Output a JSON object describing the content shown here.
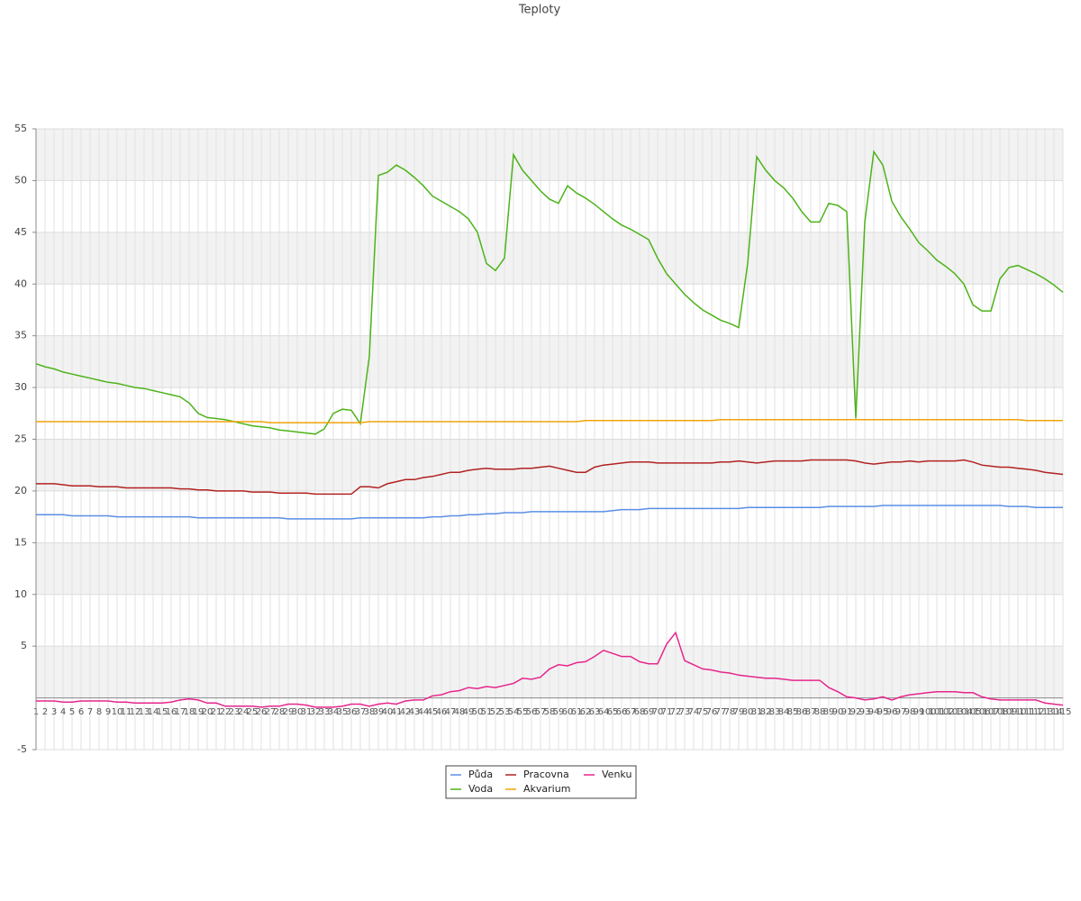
{
  "chart_data": {
    "type": "line",
    "title": "Teploty",
    "categories": [
      1,
      2,
      3,
      4,
      5,
      6,
      7,
      8,
      9,
      10,
      11,
      12,
      13,
      14,
      15,
      16,
      17,
      18,
      19,
      20,
      21,
      22,
      23,
      24,
      25,
      26,
      27,
      28,
      29,
      30,
      31,
      32,
      33,
      34,
      35,
      36,
      37,
      38,
      39,
      40,
      41,
      42,
      43,
      44,
      45,
      46,
      47,
      48,
      49,
      50,
      51,
      52,
      53,
      54,
      55,
      56,
      57,
      58,
      59,
      60,
      61,
      62,
      63,
      64,
      65,
      66,
      67,
      68,
      69,
      70,
      71,
      72,
      73,
      74,
      75,
      76,
      77,
      78,
      79,
      80,
      81,
      82,
      83,
      84,
      85,
      86,
      87,
      88,
      89,
      90,
      91,
      92,
      93,
      94,
      95,
      96,
      97,
      98,
      99,
      100,
      101,
      102,
      103,
      104,
      105,
      106,
      107,
      108,
      109,
      110,
      111,
      112,
      113,
      114,
      115
    ],
    "series": [
      {
        "name": "Půda",
        "color": "#5b8ee6",
        "values": [
          17.7,
          17.7,
          17.7,
          17.7,
          17.6,
          17.6,
          17.6,
          17.6,
          17.6,
          17.5,
          17.5,
          17.5,
          17.5,
          17.5,
          17.5,
          17.5,
          17.5,
          17.5,
          17.4,
          17.4,
          17.4,
          17.4,
          17.4,
          17.4,
          17.4,
          17.4,
          17.4,
          17.4,
          17.3,
          17.3,
          17.3,
          17.3,
          17.3,
          17.3,
          17.3,
          17.3,
          17.4,
          17.4,
          17.4,
          17.4,
          17.4,
          17.4,
          17.4,
          17.4,
          17.5,
          17.5,
          17.6,
          17.6,
          17.7,
          17.7,
          17.8,
          17.8,
          17.9,
          17.9,
          17.9,
          18.0,
          18.0,
          18.0,
          18.0,
          18.0,
          18.0,
          18.0,
          18.0,
          18.0,
          18.1,
          18.2,
          18.2,
          18.2,
          18.3,
          18.3,
          18.3,
          18.3,
          18.3,
          18.3,
          18.3,
          18.3,
          18.3,
          18.3,
          18.3,
          18.4,
          18.4,
          18.4,
          18.4,
          18.4,
          18.4,
          18.4,
          18.4,
          18.4,
          18.5,
          18.5,
          18.5,
          18.5,
          18.5,
          18.5,
          18.6,
          18.6,
          18.6,
          18.6,
          18.6,
          18.6,
          18.6,
          18.6,
          18.6,
          18.6,
          18.6,
          18.6,
          18.6,
          18.6,
          18.5,
          18.5,
          18.5,
          18.4,
          18.4,
          18.4,
          18.4
        ]
      },
      {
        "name": "Voda",
        "color": "#4db319",
        "values": [
          32.3,
          32.0,
          31.8,
          31.5,
          31.3,
          31.1,
          30.9,
          30.7,
          30.5,
          30.4,
          30.2,
          30.0,
          29.9,
          29.7,
          29.5,
          29.3,
          29.1,
          28.5,
          27.5,
          27.1,
          27.0,
          26.9,
          26.7,
          26.5,
          26.3,
          26.2,
          26.1,
          25.9,
          25.8,
          25.7,
          25.6,
          25.5,
          26.0,
          27.5,
          27.9,
          27.8,
          26.5,
          33,
          50.5,
          50.8,
          51.5,
          51.0,
          50.3,
          49.5,
          48.5,
          48.0,
          47.5,
          47.0,
          46.3,
          45.0,
          42.0,
          41.3,
          42.5,
          52.5,
          51.0,
          50.0,
          49.0,
          48.2,
          47.8,
          49.5,
          48.8,
          48.3,
          47.7,
          47.0,
          46.3,
          45.7,
          45.3,
          44.8,
          44.3,
          42.5,
          41.0,
          40.0,
          39.0,
          38.2,
          37.5,
          37.0,
          36.5,
          36.2,
          35.8,
          42,
          52.3,
          51.0,
          50.0,
          49.3,
          48.3,
          47.0,
          46.0,
          46.0,
          47.8,
          47.6,
          47.0,
          27,
          46,
          52.8,
          51.5,
          48.0,
          46.5,
          45.3,
          44.0,
          43.2,
          42.3,
          41.7,
          41.0,
          40.0,
          38.0,
          37.4,
          37.4,
          40.5,
          41.6,
          41.8,
          41.4,
          41.0,
          40.5,
          39.9,
          39.2
        ]
      },
      {
        "name": "Pracovna",
        "color": "#b22222",
        "values": [
          20.7,
          20.7,
          20.7,
          20.6,
          20.5,
          20.5,
          20.5,
          20.4,
          20.4,
          20.4,
          20.3,
          20.3,
          20.3,
          20.3,
          20.3,
          20.3,
          20.2,
          20.2,
          20.1,
          20.1,
          20.0,
          20.0,
          20.0,
          20.0,
          19.9,
          19.9,
          19.9,
          19.8,
          19.8,
          19.8,
          19.8,
          19.7,
          19.7,
          19.7,
          19.7,
          19.7,
          20.4,
          20.4,
          20.3,
          20.7,
          20.9,
          21.1,
          21.1,
          21.3,
          21.4,
          21.6,
          21.8,
          21.8,
          22.0,
          22.1,
          22.2,
          22.1,
          22.1,
          22.1,
          22.2,
          22.2,
          22.3,
          22.4,
          22.2,
          22.0,
          21.8,
          21.8,
          22.3,
          22.5,
          22.6,
          22.7,
          22.8,
          22.8,
          22.8,
          22.7,
          22.7,
          22.7,
          22.7,
          22.7,
          22.7,
          22.7,
          22.8,
          22.8,
          22.9,
          22.8,
          22.7,
          22.8,
          22.9,
          22.9,
          22.9,
          22.9,
          23.0,
          23.0,
          23.0,
          23.0,
          23.0,
          22.9,
          22.7,
          22.6,
          22.7,
          22.8,
          22.8,
          22.9,
          22.8,
          22.9,
          22.9,
          22.9,
          22.9,
          23.0,
          22.8,
          22.5,
          22.4,
          22.3,
          22.3,
          22.2,
          22.1,
          22.0,
          21.8,
          21.7,
          21.6
        ]
      },
      {
        "name": "Akvarium",
        "color": "#f0a30a",
        "values": [
          26.7,
          26.7,
          26.7,
          26.7,
          26.7,
          26.7,
          26.7,
          26.7,
          26.7,
          26.7,
          26.7,
          26.7,
          26.7,
          26.7,
          26.7,
          26.7,
          26.7,
          26.7,
          26.7,
          26.7,
          26.7,
          26.7,
          26.7,
          26.7,
          26.7,
          26.7,
          26.6,
          26.6,
          26.6,
          26.6,
          26.6,
          26.6,
          26.6,
          26.6,
          26.6,
          26.6,
          26.6,
          26.7,
          26.7,
          26.7,
          26.7,
          26.7,
          26.7,
          26.7,
          26.7,
          26.7,
          26.7,
          26.7,
          26.7,
          26.7,
          26.7,
          26.7,
          26.7,
          26.7,
          26.7,
          26.7,
          26.7,
          26.7,
          26.7,
          26.7,
          26.7,
          26.8,
          26.8,
          26.8,
          26.8,
          26.8,
          26.8,
          26.8,
          26.8,
          26.8,
          26.8,
          26.8,
          26.8,
          26.8,
          26.8,
          26.8,
          26.9,
          26.9,
          26.9,
          26.9,
          26.9,
          26.9,
          26.9,
          26.9,
          26.9,
          26.9,
          26.9,
          26.9,
          26.9,
          26.9,
          26.9,
          26.9,
          26.9,
          26.9,
          26.9,
          26.9,
          26.9,
          26.9,
          26.9,
          26.9,
          26.9,
          26.9,
          26.9,
          26.9,
          26.9,
          26.9,
          26.9,
          26.9,
          26.9,
          26.9,
          26.8,
          26.8,
          26.8,
          26.8,
          26.8
        ]
      },
      {
        "name": "Venku",
        "color": "#e6268c",
        "values": [
          -0.3,
          -0.3,
          -0.3,
          -0.4,
          -0.4,
          -0.3,
          -0.3,
          -0.3,
          -0.3,
          -0.4,
          -0.4,
          -0.5,
          -0.5,
          -0.5,
          -0.5,
          -0.4,
          -0.2,
          -0.1,
          -0.2,
          -0.5,
          -0.5,
          -0.8,
          -0.8,
          -0.8,
          -0.8,
          -0.9,
          -0.8,
          -0.8,
          -0.6,
          -0.6,
          -0.7,
          -0.9,
          -0.9,
          -0.9,
          -0.8,
          -0.6,
          -0.6,
          -0.8,
          -0.6,
          -0.5,
          -0.6,
          -0.3,
          -0.2,
          -0.2,
          0.2,
          0.3,
          0.6,
          0.7,
          1.0,
          0.9,
          1.1,
          1.0,
          1.2,
          1.4,
          1.9,
          1.8,
          2.0,
          2.8,
          3.2,
          3.1,
          3.4,
          3.5,
          4.0,
          4.6,
          4.3,
          4.0,
          4.0,
          3.5,
          3.3,
          3.3,
          5.2,
          6.3,
          3.6,
          3.2,
          2.8,
          2.7,
          2.5,
          2.4,
          2.2,
          2.1,
          2.0,
          1.9,
          1.9,
          1.8,
          1.7,
          1.7,
          1.7,
          1.7,
          1.0,
          0.6,
          0.1,
          0.0,
          -0.2,
          -0.1,
          0.1,
          -0.2,
          0.1,
          0.3,
          0.4,
          0.5,
          0.6,
          0.6,
          0.6,
          0.5,
          0.5,
          0.1,
          -0.1,
          -0.2,
          -0.2,
          -0.2,
          -0.2,
          -0.2,
          -0.5,
          -0.6,
          -0.7
        ]
      }
    ],
    "ylim": [
      -5,
      55
    ],
    "yticks": [
      -5,
      5,
      10,
      15,
      20,
      25,
      30,
      35,
      40,
      45,
      50,
      55
    ],
    "grid": true
  }
}
